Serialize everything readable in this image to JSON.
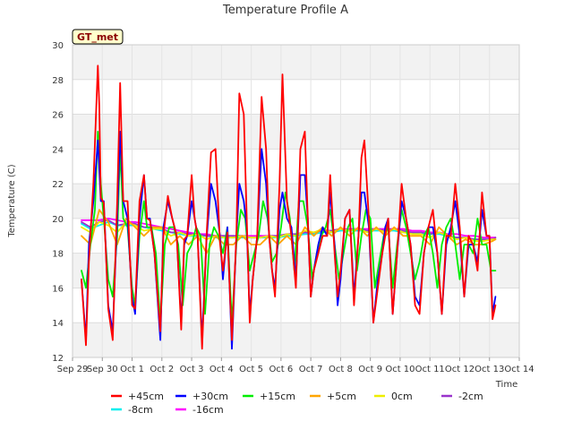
{
  "chart_data": {
    "type": "line",
    "title": "Temperature Profile A",
    "xlabel": "Time",
    "ylabel": "Temperature (C)",
    "badge": "GT_met",
    "ylim": [
      12,
      30
    ],
    "yticks": [
      12,
      14,
      16,
      18,
      20,
      22,
      24,
      26,
      28,
      30
    ],
    "xlim": [
      0,
      15
    ],
    "xticks": [
      {
        "x": 0,
        "label": "Sep 29"
      },
      {
        "x": 1,
        "label": "Sep 30"
      },
      {
        "x": 2,
        "label": "Oct 1"
      },
      {
        "x": 3,
        "label": "Oct 2"
      },
      {
        "x": 4,
        "label": "Oct 3"
      },
      {
        "x": 5,
        "label": "Oct 4"
      },
      {
        "x": 6,
        "label": "Oct 5"
      },
      {
        "x": 7,
        "label": "Oct 6"
      },
      {
        "x": 8,
        "label": "Oct 7"
      },
      {
        "x": 9,
        "label": "Oct 8"
      },
      {
        "x": 10,
        "label": "Oct 9"
      },
      {
        "x": 11,
        "label": "Oct 10"
      },
      {
        "x": 12,
        "label": "Oct 11"
      },
      {
        "x": 13,
        "label": "Oct 12"
      },
      {
        "x": 14,
        "label": "Oct 13"
      },
      {
        "x": 15,
        "label": "Oct 14"
      }
    ],
    "grid": true,
    "legend_position": "bottom",
    "series": [
      {
        "name": "+45cm",
        "color": "#ff0000",
        "x": [
          0.3,
          0.45,
          0.55,
          0.7,
          0.85,
          0.9,
          0.95,
          1.05,
          1.2,
          1.35,
          1.5,
          1.6,
          1.7,
          1.85,
          2.0,
          2.1,
          2.25,
          2.4,
          2.5,
          2.6,
          2.75,
          2.95,
          3.05,
          3.2,
          3.35,
          3.5,
          3.65,
          3.75,
          3.85,
          4.0,
          4.1,
          4.2,
          4.35,
          4.5,
          4.65,
          4.8,
          4.95,
          5.05,
          5.2,
          5.35,
          5.5,
          5.6,
          5.75,
          5.85,
          5.95,
          6.05,
          6.2,
          6.35,
          6.5,
          6.6,
          6.7,
          6.8,
          6.95,
          7.05,
          7.2,
          7.35,
          7.5,
          7.65,
          7.8,
          7.9,
          8.0,
          8.1,
          8.25,
          8.4,
          8.55,
          8.65,
          8.8,
          8.9,
          9.0,
          9.15,
          9.3,
          9.45,
          9.6,
          9.7,
          9.8,
          9.95,
          10.1,
          10.25,
          10.4,
          10.5,
          10.6,
          10.75,
          10.9,
          11.05,
          11.2,
          11.35,
          11.5,
          11.65,
          11.8,
          11.95,
          12.1,
          12.25,
          12.4,
          12.55,
          12.7,
          12.85,
          13.0,
          13.15,
          13.3,
          13.45,
          13.6,
          13.75,
          13.9,
          14.0,
          14.1,
          14.2
        ],
        "y": [
          16.5,
          12.7,
          17.5,
          22.0,
          28.8,
          26.5,
          21.2,
          20.9,
          14.8,
          13.0,
          21.0,
          27.8,
          21.0,
          21.0,
          15.0,
          14.8,
          21.0,
          22.5,
          20.0,
          19.9,
          18.0,
          13.5,
          19.0,
          21.3,
          20.0,
          19.0,
          13.6,
          18.8,
          19.0,
          22.5,
          20.0,
          19.0,
          12.5,
          19.0,
          23.8,
          24.0,
          18.6,
          17.0,
          19.2,
          13.0,
          19.0,
          27.2,
          26.0,
          20.0,
          14.0,
          16.5,
          19.0,
          27.0,
          24.0,
          19.0,
          17.0,
          15.5,
          22.0,
          28.3,
          21.0,
          19.0,
          16.0,
          24.0,
          25.0,
          20.0,
          15.5,
          17.0,
          18.0,
          19.0,
          19.0,
          22.5,
          18.0,
          15.5,
          17.0,
          20.0,
          20.5,
          15.0,
          19.0,
          23.5,
          24.5,
          20.0,
          14.0,
          16.0,
          18.0,
          19.0,
          20.0,
          14.5,
          18.0,
          22.0,
          20.0,
          18.5,
          15.0,
          14.5,
          18.0,
          19.5,
          20.5,
          18.0,
          14.5,
          19.0,
          19.0,
          22.0,
          19.5,
          15.5,
          19.0,
          18.5,
          17.0,
          21.5,
          19.0,
          19.0,
          14.2,
          15.0
        ]
      },
      {
        "name": "+30cm",
        "color": "#0000ff",
        "x": [
          0.3,
          0.45,
          0.55,
          0.7,
          0.85,
          0.95,
          1.05,
          1.2,
          1.35,
          1.5,
          1.6,
          1.7,
          1.85,
          2.0,
          2.1,
          2.25,
          2.4,
          2.5,
          2.6,
          2.75,
          2.95,
          3.05,
          3.2,
          3.35,
          3.5,
          3.65,
          3.75,
          3.85,
          4.0,
          4.1,
          4.2,
          4.35,
          4.5,
          4.65,
          4.8,
          4.95,
          5.05,
          5.2,
          5.35,
          5.5,
          5.6,
          5.75,
          5.85,
          5.95,
          6.05,
          6.2,
          6.35,
          6.5,
          6.6,
          6.7,
          6.8,
          6.95,
          7.05,
          7.2,
          7.35,
          7.5,
          7.65,
          7.8,
          7.9,
          8.0,
          8.1,
          8.25,
          8.4,
          8.55,
          8.65,
          8.8,
          8.9,
          9.0,
          9.15,
          9.3,
          9.45,
          9.6,
          9.7,
          9.8,
          9.95,
          10.1,
          10.25,
          10.4,
          10.5,
          10.6,
          10.75,
          10.9,
          11.05,
          11.2,
          11.35,
          11.5,
          11.65,
          11.8,
          11.95,
          12.1,
          12.25,
          12.4,
          12.55,
          12.7,
          12.85,
          13.0,
          13.15,
          13.3,
          13.45,
          13.6,
          13.75,
          13.9,
          14.0,
          14.1,
          14.2
        ],
        "y": [
          16.5,
          13.0,
          18.5,
          21.0,
          24.5,
          21.0,
          21.0,
          15.0,
          13.5,
          20.0,
          25.0,
          21.0,
          20.0,
          15.5,
          14.5,
          20.0,
          22.5,
          20.0,
          20.0,
          18.0,
          13.0,
          19.5,
          21.0,
          20.0,
          19.0,
          14.0,
          18.5,
          19.0,
          21.0,
          20.0,
          19.0,
          13.0,
          18.8,
          22.0,
          21.0,
          19.0,
          16.5,
          19.5,
          12.5,
          19.0,
          22.0,
          21.0,
          19.5,
          14.5,
          16.5,
          19.0,
          24.0,
          22.0,
          19.0,
          17.0,
          16.0,
          20.5,
          21.5,
          20.0,
          19.5,
          16.5,
          22.5,
          22.5,
          20.0,
          15.5,
          17.0,
          18.5,
          19.5,
          19.0,
          21.5,
          18.5,
          15.0,
          16.5,
          20.0,
          20.5,
          15.5,
          19.0,
          21.5,
          21.5,
          19.5,
          14.0,
          16.5,
          18.0,
          19.5,
          20.0,
          14.5,
          18.0,
          21.0,
          20.0,
          18.5,
          15.5,
          15.0,
          18.0,
          19.5,
          19.5,
          18.0,
          14.5,
          18.5,
          19.5,
          21.0,
          19.0,
          15.5,
          18.5,
          18.5,
          17.5,
          20.5,
          19.0,
          19.0,
          14.5,
          15.5
        ]
      },
      {
        "name": "+15cm",
        "color": "#00ee00",
        "x": [
          0.3,
          0.45,
          0.6,
          0.75,
          0.85,
          0.95,
          1.05,
          1.2,
          1.35,
          1.5,
          1.6,
          1.7,
          1.85,
          2.0,
          2.1,
          2.25,
          2.4,
          2.5,
          2.65,
          2.8,
          2.95,
          3.1,
          3.25,
          3.4,
          3.55,
          3.7,
          3.85,
          4.0,
          4.15,
          4.3,
          4.45,
          4.6,
          4.75,
          4.9,
          5.05,
          5.2,
          5.35,
          5.5,
          5.65,
          5.8,
          5.95,
          6.1,
          6.25,
          6.4,
          6.55,
          6.7,
          6.85,
          7.0,
          7.15,
          7.3,
          7.45,
          7.6,
          7.75,
          7.9,
          8.05,
          8.2,
          8.35,
          8.5,
          8.65,
          8.8,
          8.95,
          9.1,
          9.25,
          9.4,
          9.55,
          9.7,
          9.85,
          10.0,
          10.15,
          10.3,
          10.45,
          10.6,
          10.75,
          10.9,
          11.05,
          11.2,
          11.35,
          11.5,
          11.65,
          11.8,
          11.95,
          12.1,
          12.25,
          12.4,
          12.55,
          12.7,
          12.85,
          13.0,
          13.15,
          13.3,
          13.45,
          13.6,
          13.75,
          13.9,
          14.05,
          14.2
        ],
        "y": [
          17.0,
          16.0,
          18.5,
          20.5,
          25.0,
          22.0,
          20.0,
          16.5,
          15.5,
          19.0,
          24.0,
          20.0,
          19.5,
          16.0,
          15.0,
          19.0,
          21.0,
          19.5,
          19.5,
          18.0,
          14.0,
          18.5,
          19.5,
          19.5,
          18.5,
          15.0,
          18.0,
          18.5,
          19.5,
          19.0,
          14.5,
          18.5,
          19.5,
          19.0,
          18.0,
          19.5,
          14.0,
          18.5,
          20.5,
          20.0,
          17.0,
          18.0,
          19.0,
          21.0,
          20.0,
          17.5,
          18.0,
          19.5,
          21.5,
          20.0,
          17.0,
          21.0,
          21.0,
          19.5,
          16.5,
          18.0,
          19.0,
          19.5,
          20.5,
          18.5,
          16.5,
          18.0,
          19.5,
          20.0,
          17.0,
          19.0,
          20.5,
          20.0,
          16.0,
          17.5,
          19.0,
          19.5,
          16.0,
          18.5,
          20.5,
          19.5,
          18.0,
          16.5,
          17.5,
          19.0,
          19.5,
          18.0,
          16.0,
          18.5,
          19.5,
          20.0,
          18.5,
          16.5,
          18.5,
          18.5,
          18.0,
          20.0,
          18.5,
          18.5,
          17.0,
          17.0
        ]
      },
      {
        "name": "+5cm",
        "color": "#ffa500",
        "x": [
          0.3,
          0.6,
          0.9,
          1.2,
          1.5,
          1.8,
          2.1,
          2.4,
          2.7,
          3.0,
          3.3,
          3.6,
          3.9,
          4.2,
          4.5,
          4.8,
          5.1,
          5.4,
          5.7,
          6.0,
          6.3,
          6.6,
          6.9,
          7.2,
          7.5,
          7.8,
          8.1,
          8.4,
          8.7,
          9.0,
          9.3,
          9.6,
          9.9,
          10.2,
          10.5,
          10.8,
          11.1,
          11.4,
          11.7,
          12.0,
          12.3,
          12.6,
          12.9,
          13.2,
          13.5,
          13.8,
          14.1,
          14.2
        ],
        "y": [
          19.0,
          18.5,
          20.5,
          19.8,
          18.5,
          20.0,
          19.5,
          19.0,
          19.5,
          19.5,
          18.5,
          19.0,
          18.5,
          19.0,
          18.0,
          19.0,
          18.5,
          18.5,
          19.0,
          18.5,
          18.5,
          19.0,
          18.5,
          19.0,
          18.5,
          19.5,
          19.0,
          19.5,
          19.0,
          19.5,
          19.0,
          19.5,
          19.0,
          19.5,
          19.0,
          19.5,
          19.0,
          19.0,
          19.0,
          18.5,
          19.5,
          19.0,
          18.5,
          18.8,
          18.5,
          18.5,
          18.7,
          18.8
        ]
      },
      {
        "name": "0cm",
        "color": "#eeee00",
        "x": [
          0.3,
          0.6,
          0.9,
          1.2,
          1.5,
          1.8,
          2.1,
          2.4,
          2.7,
          3.0,
          3.3,
          3.6,
          3.9,
          4.2,
          4.5,
          4.8,
          5.1,
          5.4,
          5.7,
          6.0,
          6.3,
          6.6,
          6.9,
          7.2,
          7.5,
          7.8,
          8.1,
          8.4,
          8.7,
          9.0,
          9.3,
          9.6,
          9.9,
          10.2,
          10.5,
          10.8,
          11.1,
          11.4,
          11.7,
          12.0,
          12.3,
          12.6,
          12.9,
          13.2,
          13.5,
          13.8,
          14.1,
          14.2
        ],
        "y": [
          19.5,
          19.2,
          19.8,
          19.6,
          19.2,
          19.8,
          19.6,
          19.3,
          19.4,
          19.4,
          19.0,
          19.2,
          19.0,
          19.1,
          18.8,
          19.0,
          18.9,
          18.9,
          19.0,
          18.9,
          18.9,
          19.0,
          18.9,
          19.1,
          19.0,
          19.3,
          19.2,
          19.4,
          19.2,
          19.4,
          19.3,
          19.4,
          19.2,
          19.4,
          19.2,
          19.4,
          19.2,
          19.1,
          19.1,
          18.9,
          19.2,
          19.0,
          18.8,
          18.9,
          18.7,
          18.7,
          18.8,
          18.8
        ]
      },
      {
        "name": "-2cm",
        "color": "#9933cc",
        "x": [
          0.3,
          0.6,
          0.9,
          1.2,
          1.5,
          1.8,
          2.1,
          2.4,
          2.7,
          3.0,
          3.3,
          3.6,
          3.9,
          4.2,
          4.5,
          4.8,
          5.1,
          5.4,
          5.7,
          6.0,
          6.3,
          6.6,
          6.9,
          7.2,
          7.5,
          7.8,
          8.1,
          8.4,
          8.7,
          9.0,
          9.3,
          9.6,
          9.9,
          10.2,
          10.5,
          10.8,
          11.1,
          11.4,
          11.7,
          12.0,
          12.3,
          12.6,
          12.9,
          13.2,
          13.5,
          13.8,
          14.1,
          14.2
        ],
        "y": [
          19.8,
          19.5,
          19.8,
          19.9,
          19.6,
          19.7,
          19.7,
          19.5,
          19.5,
          19.4,
          19.2,
          19.2,
          19.1,
          19.1,
          19.0,
          19.0,
          19.0,
          19.0,
          19.0,
          18.9,
          18.9,
          19.0,
          19.0,
          19.1,
          19.1,
          19.2,
          19.2,
          19.3,
          19.3,
          19.4,
          19.3,
          19.4,
          19.3,
          19.4,
          19.3,
          19.4,
          19.3,
          19.2,
          19.2,
          19.1,
          19.2,
          19.0,
          18.9,
          18.9,
          18.8,
          18.8,
          18.8,
          18.9
        ]
      },
      {
        "name": "-8cm",
        "color": "#00eeee",
        "x": [
          0.3,
          0.6,
          0.9,
          1.2,
          1.5,
          1.8,
          2.1,
          2.4,
          2.7,
          3.0,
          3.3,
          3.6,
          3.9,
          4.2,
          4.5,
          4.8,
          5.1,
          5.4,
          5.7,
          6.0,
          6.3,
          6.6,
          6.9,
          7.2,
          7.5,
          7.8,
          8.1,
          8.4,
          8.7,
          9.0,
          9.3,
          9.6,
          9.9,
          10.2,
          10.5,
          10.8,
          11.1,
          11.4,
          11.7,
          12.0,
          12.3,
          12.6,
          12.9,
          13.2,
          13.5,
          13.8,
          14.1,
          14.2
        ],
        "y": [
          19.7,
          19.4,
          19.6,
          19.8,
          19.6,
          19.6,
          19.6,
          19.5,
          19.4,
          19.3,
          19.2,
          19.1,
          19.0,
          19.0,
          19.0,
          18.9,
          18.9,
          18.9,
          18.9,
          18.9,
          18.9,
          18.9,
          18.9,
          19.0,
          19.0,
          19.1,
          19.1,
          19.2,
          19.2,
          19.3,
          19.3,
          19.3,
          19.3,
          19.3,
          19.3,
          19.3,
          19.2,
          19.2,
          19.1,
          19.1,
          19.1,
          19.0,
          18.9,
          18.9,
          18.8,
          18.8,
          18.8,
          18.8
        ]
      },
      {
        "name": "-16cm",
        "color": "#ff00ff",
        "x": [
          0.3,
          0.6,
          0.9,
          1.2,
          1.5,
          1.8,
          2.1,
          2.4,
          2.7,
          3.0,
          3.3,
          3.6,
          3.9,
          4.2,
          4.5,
          4.8,
          5.1,
          5.4,
          5.7,
          6.0,
          6.3,
          6.6,
          6.9,
          7.2,
          7.5,
          7.8,
          8.1,
          8.4,
          8.7,
          9.0,
          9.3,
          9.6,
          9.9,
          10.2,
          10.5,
          10.8,
          11.1,
          11.4,
          11.7,
          12.0,
          12.3,
          12.6,
          12.9,
          13.2,
          13.5,
          13.8,
          14.1,
          14.2
        ],
        "y": [
          19.9,
          19.9,
          19.9,
          20.0,
          19.9,
          19.8,
          19.8,
          19.7,
          19.6,
          19.5,
          19.4,
          19.3,
          19.2,
          19.1,
          19.1,
          19.0,
          19.0,
          19.0,
          19.0,
          19.0,
          19.0,
          19.0,
          19.0,
          19.0,
          19.1,
          19.1,
          19.2,
          19.3,
          19.3,
          19.4,
          19.4,
          19.4,
          19.4,
          19.4,
          19.4,
          19.4,
          19.4,
          19.3,
          19.3,
          19.2,
          19.2,
          19.1,
          19.1,
          19.0,
          19.0,
          18.9,
          18.9,
          18.9
        ]
      }
    ]
  }
}
